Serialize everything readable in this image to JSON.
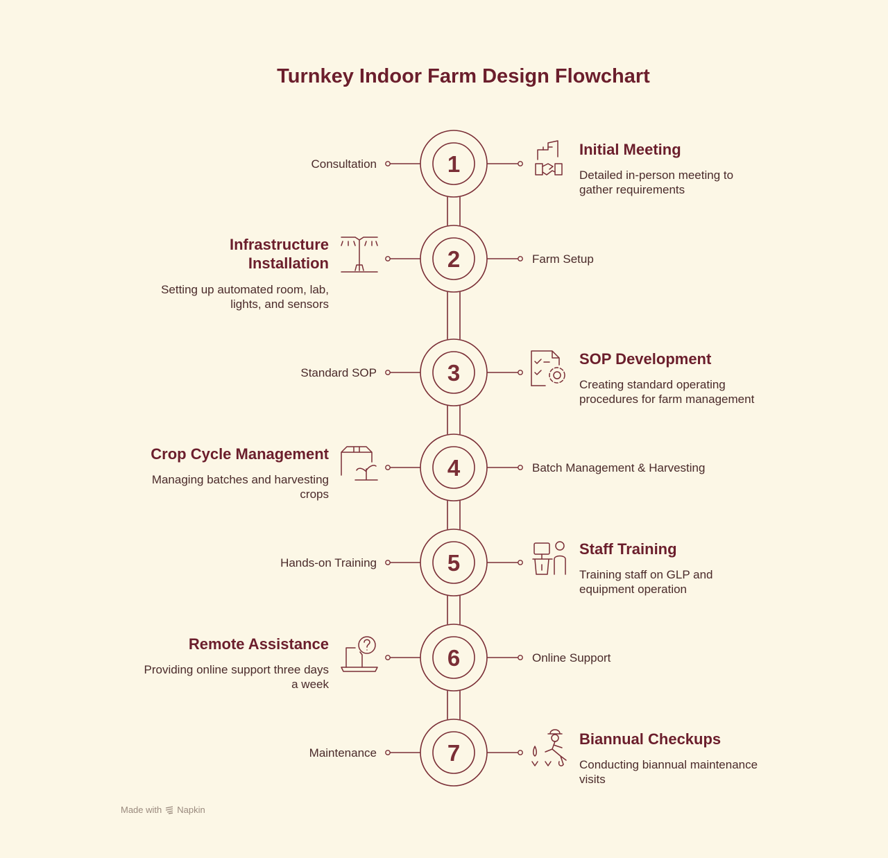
{
  "title": "Turnkey Indoor Farm Design Flowchart",
  "steps": [
    {
      "number": "1",
      "short": "Consultation",
      "heading": "Initial Meeting",
      "description": "Detailed in-person meeting to gather requirements",
      "icon": "handshake-building-icon"
    },
    {
      "number": "2",
      "short": "Farm Setup",
      "heading": "Infrastructure Installation",
      "description": "Setting up automated room, lab, lights, and sensors",
      "icon": "grow-light-icon"
    },
    {
      "number": "3",
      "short": "Standard SOP",
      "heading": "SOP Development",
      "description": "Creating standard operating procedures for farm management",
      "icon": "checklist-gear-icon"
    },
    {
      "number": "4",
      "short": "Batch Management & Harvesting",
      "heading": "Crop Cycle Management",
      "description": "Managing batches and harvesting crops",
      "icon": "box-sprout-icon"
    },
    {
      "number": "5",
      "short": "Hands-on Training",
      "heading": "Staff Training",
      "description": "Training staff on GLP and equipment operation",
      "icon": "presenter-icon"
    },
    {
      "number": "6",
      "short": "Online Support",
      "heading": "Remote Assistance",
      "description": "Providing online support three days a week",
      "icon": "laptop-question-icon"
    },
    {
      "number": "7",
      "short": "Maintenance",
      "heading": "Biannual Checkups",
      "description": "Conducting biannual maintenance visits",
      "icon": "farmer-icon"
    }
  ],
  "footer": {
    "made_with": "Made with",
    "brand": "Napkin"
  },
  "colors": {
    "background": "#fcf7e6",
    "accent": "#6b1e2c",
    "text": "#4a2a2a"
  }
}
